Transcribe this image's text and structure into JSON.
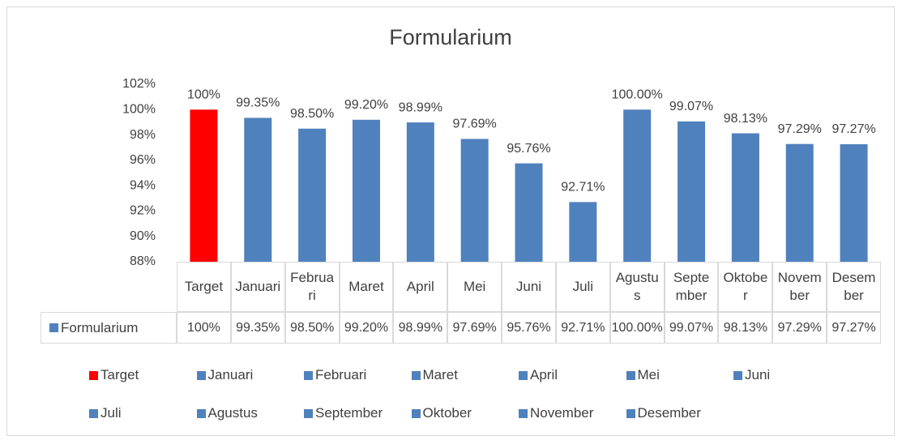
{
  "chart_data": {
    "type": "bar",
    "title": "Formularium",
    "categories": [
      "Target",
      "Januari",
      "Februari",
      "Maret",
      "April",
      "Mei",
      "Juni",
      "Juli",
      "Agustus",
      "September",
      "Oktober",
      "November",
      "Desember"
    ],
    "series": [
      {
        "name": "Formularium",
        "color": "#4f81bd",
        "values": [
          100,
          99.35,
          98.5,
          99.2,
          98.99,
          97.69,
          95.76,
          92.71,
          100,
          99.07,
          98.13,
          97.29,
          97.27
        ],
        "value_labels": [
          "100%",
          "99.35%",
          "98.50%",
          "99.20%",
          "98.99%",
          "97.69%",
          "95.76%",
          "92.71%",
          "100.00%",
          "99.07%",
          "98.13%",
          "97.29%",
          "97.27%"
        ]
      }
    ],
    "colors": [
      "#ff0000",
      "#4f81bd",
      "#4f81bd",
      "#4f81bd",
      "#4f81bd",
      "#4f81bd",
      "#4f81bd",
      "#4f81bd",
      "#4f81bd",
      "#4f81bd",
      "#4f81bd",
      "#4f81bd",
      "#4f81bd"
    ],
    "ylim": [
      88,
      102
    ],
    "yticks": [
      {
        "value": 88,
        "label": "88%"
      },
      {
        "value": 90,
        "label": "90%"
      },
      {
        "value": 92,
        "label": "92%"
      },
      {
        "value": 94,
        "label": "94%"
      },
      {
        "value": 96,
        "label": "96%"
      },
      {
        "value": 98,
        "label": "98%"
      },
      {
        "value": 100,
        "label": "100%"
      },
      {
        "value": 102,
        "label": "102%"
      }
    ],
    "grid": false,
    "legend": "bottom",
    "data_table": true
  }
}
